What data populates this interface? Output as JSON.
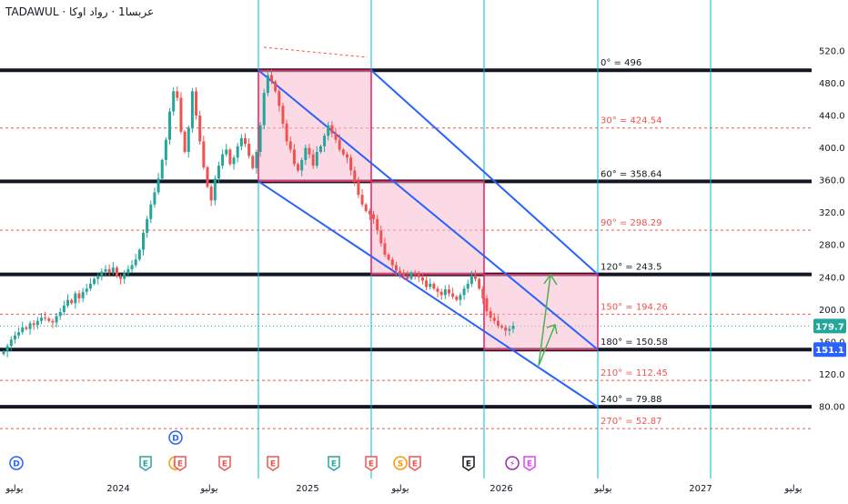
{
  "header": {
    "symbol": "TADAWUL",
    "separator": "·",
    "name": "عربسا1 · رواد اوكا"
  },
  "price_badges": {
    "current": "179.7",
    "level": "151.1"
  },
  "colors": {
    "bull": "#26a69a",
    "bear": "#ef5350",
    "box_fill": "#f8bbd0",
    "box_border": "#e91e63",
    "channel": "#2962ff",
    "thick_level": "#131722",
    "dashed_level": "#ef5350",
    "time_line": "#00bcd4",
    "arrow": "#4caf50",
    "current_badge": "#26a69a",
    "level_badge": "#2962ff"
  },
  "gann_levels": [
    {
      "label": "0° = 496",
      "value": 496,
      "style": "thick"
    },
    {
      "label": "30° = 424.54",
      "value": 424.54,
      "style": "dashed"
    },
    {
      "label": "60° = 358.64",
      "value": 358.64,
      "style": "thick"
    },
    {
      "label": "90° = 298.29",
      "value": 298.29,
      "style": "dashed"
    },
    {
      "label": "120° = 243.5",
      "value": 243.5,
      "style": "thick"
    },
    {
      "label": "150° = 194.26",
      "value": 194.26,
      "style": "dashed"
    },
    {
      "label": "180° = 150.58",
      "value": 150.58,
      "style": "thick"
    },
    {
      "label": "210° = 112.45",
      "value": 112.45,
      "style": "dashed"
    },
    {
      "label": "240° = 79.88",
      "value": 79.88,
      "style": "thick"
    },
    {
      "label": "270° = 52.87",
      "value": 52.87,
      "style": "dashed"
    }
  ],
  "x_axis_labels": [
    "يوليو",
    "2024",
    "يوليو",
    "2025",
    "يوليو",
    "2026",
    "يوليو",
    "2027",
    "يوليو"
  ],
  "event_markers": [
    {
      "letter": "D",
      "color": "#2962ff",
      "shape": "circle"
    },
    {
      "letter": "D",
      "color": "#2962ff",
      "shape": "circle"
    },
    {
      "letter": "E",
      "color": "#26a69a",
      "shape": "tag"
    },
    {
      "letter": "E",
      "color": "#ff9800",
      "shape": "circle"
    },
    {
      "letter": "E",
      "color": "#ef5350",
      "shape": "tag"
    },
    {
      "letter": "E",
      "color": "#ef5350",
      "shape": "tag"
    },
    {
      "letter": "E",
      "color": "#ef5350",
      "shape": "tag"
    },
    {
      "letter": "E",
      "color": "#26a69a",
      "shape": "tag"
    },
    {
      "letter": "E",
      "color": "#ef5350",
      "shape": "tag"
    },
    {
      "letter": "S",
      "color": "#ff9800",
      "shape": "circle"
    },
    {
      "letter": "E",
      "color": "#ef5350",
      "shape": "tag"
    },
    {
      "letter": "E",
      "color": "#131722",
      "shape": "tag"
    },
    {
      "letter": "⚡",
      "color": "#9c27b0",
      "shape": "circle"
    },
    {
      "letter": "E",
      "color": "#e040fb",
      "shape": "tag"
    }
  ],
  "chart_data": {
    "type": "candlestick",
    "y_axis_ticks": [
      80,
      120,
      160,
      200,
      240,
      280,
      320,
      360,
      400,
      440,
      480,
      520
    ],
    "y_axis_tick_labels": [
      "80.00",
      "120.0",
      "160.0",
      "200.0",
      "240.0",
      "280.0",
      "320.0",
      "360.0",
      "400.0",
      "440.0",
      "480.0",
      "520.0"
    ],
    "ylim": [
      45,
      525
    ],
    "current_price": 179.7,
    "grid": false,
    "candles_close": [
      148,
      155,
      163,
      168,
      172,
      178,
      176,
      183,
      181,
      186,
      190,
      189,
      186,
      184,
      192,
      197,
      205,
      212,
      208,
      220,
      214,
      222,
      226,
      232,
      238,
      242,
      247,
      250,
      246,
      252,
      241,
      238,
      245,
      250,
      255,
      262,
      274,
      295,
      312,
      330,
      345,
      362,
      385,
      410,
      445,
      470,
      462,
      420,
      395,
      425,
      470,
      440,
      408,
      376,
      352,
      335,
      362,
      378,
      392,
      398,
      380,
      388,
      402,
      412,
      405,
      390,
      375,
      395,
      428,
      468,
      490,
      482,
      470,
      452,
      430,
      408,
      398,
      380,
      372,
      385,
      400,
      392,
      378,
      395,
      402,
      415,
      428,
      418,
      410,
      398,
      392,
      388,
      372,
      358,
      342,
      330,
      322,
      318,
      312,
      298,
      282,
      268,
      262,
      255,
      248,
      244,
      241,
      238,
      246,
      244,
      240,
      236,
      228,
      232,
      226,
      222,
      218,
      225,
      220,
      216,
      212,
      218,
      226,
      232,
      242,
      238,
      226,
      214,
      198,
      190,
      186,
      180,
      178,
      174,
      176,
      180
    ]
  }
}
